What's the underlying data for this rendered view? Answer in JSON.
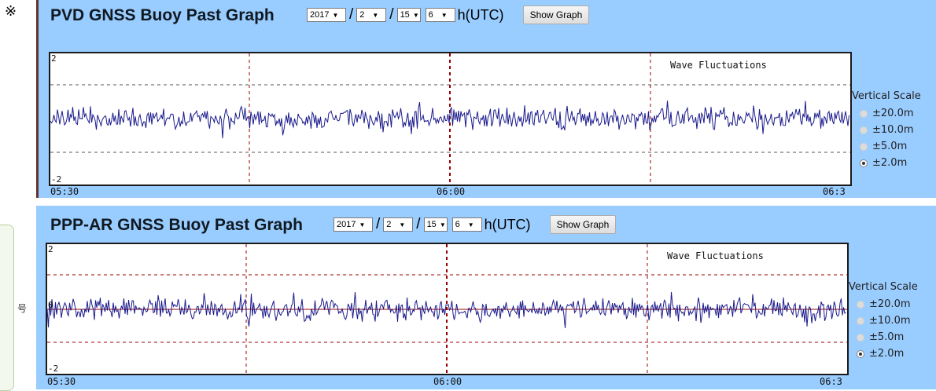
{
  "note_mark": "※",
  "side_glyph": "号",
  "graphs": [
    {
      "title": "PVD GNSS Buoy Past Graph",
      "year": "2017",
      "month": "2",
      "day": "15",
      "hour": "6",
      "unit": "h(UTC)",
      "button": "Show Graph",
      "legend": "Wave Fluctuations",
      "y_top": "2",
      "y_bottom": "-2",
      "y_mid": "",
      "x_start": "05:30",
      "x_mid": "06:00",
      "x_end": "06:3"
    },
    {
      "title": "PPP-AR GNSS Buoy Past Graph",
      "year": "2017",
      "month": "2",
      "day": "15",
      "hour": "6",
      "unit": "h(UTC)",
      "button": "Show Graph",
      "legend": "Wave Fluctuations",
      "y_top": "2",
      "y_bottom": "-2",
      "y_mid": "0",
      "x_start": "05:30",
      "x_mid": "06:00",
      "x_end": "06:3"
    }
  ],
  "scale": {
    "title": "Vertical Scale",
    "options": [
      "±20.0m",
      "±10.0m",
      "±5.0m",
      "±2.0m"
    ],
    "selected": "±2.0m"
  },
  "colors": {
    "panel_bg": "#99ccff",
    "wave": "#1a1a8c",
    "grid": "#990000"
  }
}
